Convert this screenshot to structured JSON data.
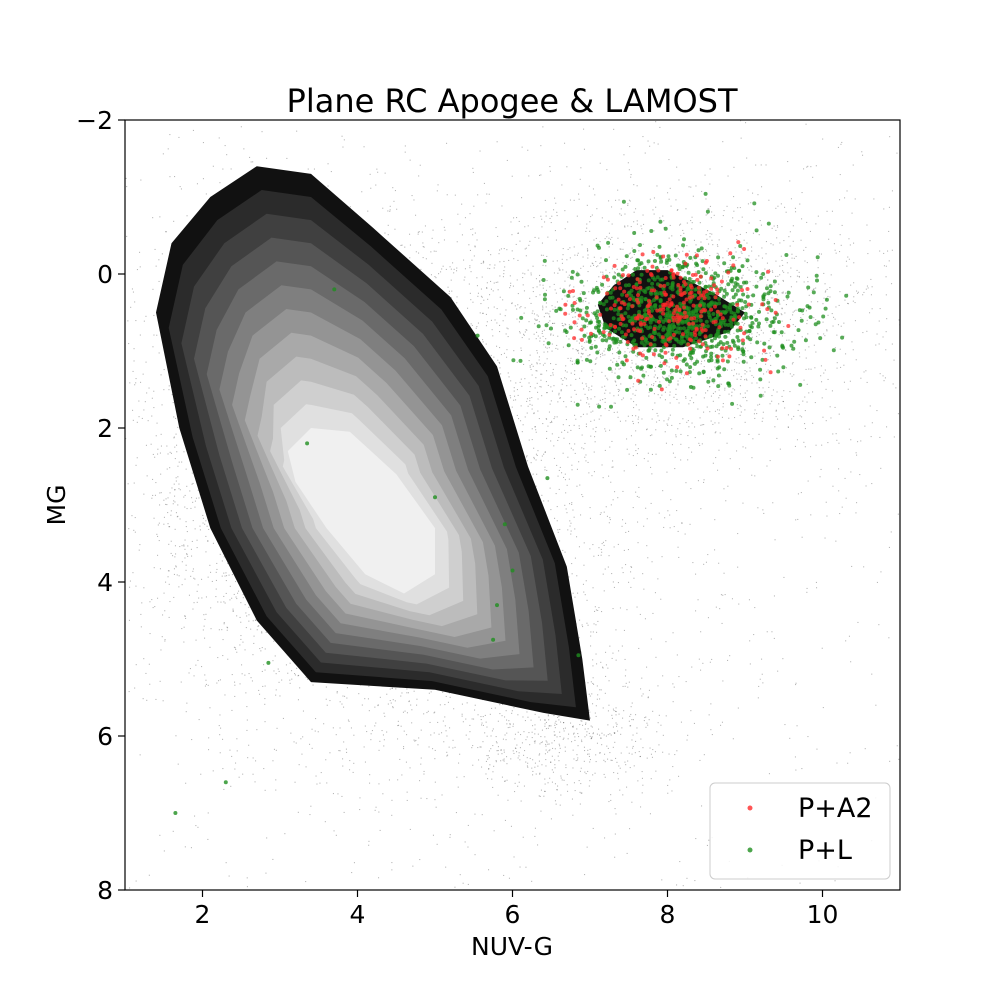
{
  "chart_data": {
    "type": "scatter",
    "title": "Plane RC Apogee & LAMOST",
    "xlabel": "NUV-G",
    "ylabel": "MG",
    "xlim": [
      1,
      11
    ],
    "ylim": [
      8,
      -2
    ],
    "y_inverted": true,
    "xticks": [
      2,
      4,
      6,
      8,
      10
    ],
    "yticks": [
      -2,
      0,
      2,
      4,
      6,
      8
    ],
    "xtick_labels": [
      "2",
      "4",
      "6",
      "8",
      "10"
    ],
    "ytick_labels": [
      "−2",
      "0",
      "2",
      "4",
      "6",
      "8"
    ],
    "grid": false,
    "legend_position": "lower-right",
    "background_density": {
      "description_of_marks": "grayscale point cloud",
      "main_blob": {
        "center": [
          4.0,
          3.0
        ],
        "outer_contour_extent_x": [
          1.4,
          7.0
        ],
        "outer_contour_extent_y": [
          -1.4,
          5.9
        ]
      },
      "secondary_blob": {
        "center": [
          8.0,
          0.5
        ],
        "contour_extent_x": [
          7.1,
          9.0
        ],
        "contour_extent_y": [
          -0.05,
          0.95
        ]
      },
      "contour_levels": 12,
      "colors": [
        "#111111",
        "#2b2b2b",
        "#404040",
        "#555555",
        "#6a6a6a",
        "#7f7f7f",
        "#949494",
        "#a9a9a9",
        "#bcbcbc",
        "#cfcfcf",
        "#e0e0e0",
        "#f0f0f0"
      ]
    },
    "series": [
      {
        "name": "P+A2",
        "color": "#ff2a2a",
        "center": [
          8.0,
          0.45
        ],
        "spread": [
          0.55,
          0.35
        ],
        "n": 260
      },
      {
        "name": "P+L",
        "color": "#1f8f1f",
        "center": [
          8.2,
          0.55
        ],
        "spread": [
          0.7,
          0.4
        ],
        "n": 900
      }
    ]
  }
}
